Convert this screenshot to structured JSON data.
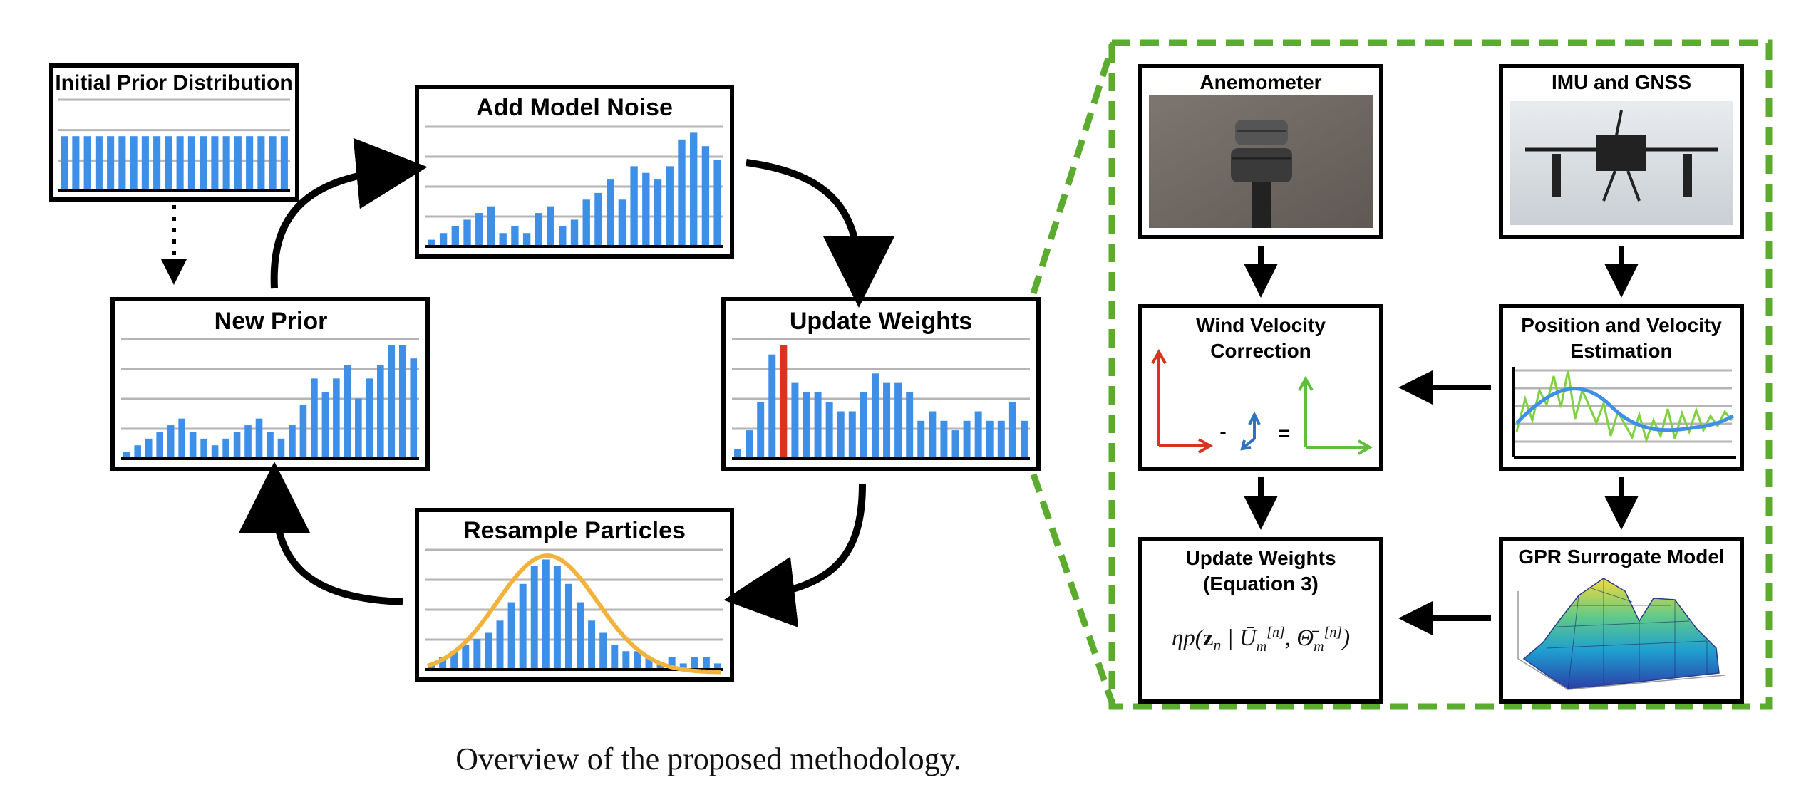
{
  "caption": "Overview of the proposed methodology.",
  "colors": {
    "bar": "#3d8fe8",
    "grid": "#b5b5b5",
    "highlight_bar": "#d8341f",
    "gaussian": "#f2b33d",
    "dashed_border": "#5aab2e",
    "arrow": "#000000",
    "vector_red": "#d8341f",
    "vector_blue": "#2f73c0",
    "vector_green": "#5fbf3a"
  },
  "left_cycle": {
    "initial_prior": {
      "title": "Initial Prior Distribution",
      "values": [
        9,
        9,
        9,
        9,
        9,
        9,
        9,
        9,
        9,
        9,
        9,
        9,
        9,
        9,
        9,
        9,
        9,
        9,
        9,
        9
      ]
    },
    "add_model_noise": {
      "title": "Add Model Noise",
      "values": [
        1,
        2,
        3,
        4,
        5,
        6,
        2,
        3,
        2,
        5,
        6,
        3,
        4,
        7,
        8,
        10,
        7,
        12,
        11,
        10,
        12,
        16,
        17,
        15,
        13
      ]
    },
    "update_weights": {
      "title": "Update Weights",
      "values": [
        1,
        3,
        6,
        11,
        12,
        8,
        7,
        7,
        6,
        5,
        5,
        7,
        9,
        8,
        8,
        7,
        4,
        5,
        4,
        3,
        4,
        5,
        4,
        4,
        6,
        4
      ],
      "highlight_index": 4
    },
    "resample_particles": {
      "title": "Resample Particles",
      "values": [
        1,
        2,
        3,
        4,
        5,
        6,
        8,
        11,
        14,
        17,
        18,
        17,
        14,
        11,
        8,
        6,
        4,
        3,
        3,
        2,
        1,
        2,
        1,
        2,
        2,
        1
      ]
    },
    "new_prior": {
      "title": "New Prior",
      "values": [
        1,
        2,
        3,
        4,
        5,
        6,
        4,
        3,
        2,
        3,
        4,
        5,
        6,
        4,
        3,
        5,
        8,
        12,
        10,
        12,
        14,
        9,
        12,
        14,
        17,
        17,
        15
      ]
    }
  },
  "right_panel": {
    "anemometer": {
      "title": "Anemometer"
    },
    "imu_gnss": {
      "title": "IMU and GNSS"
    },
    "wind_velocity": {
      "title_line1": "Wind Velocity",
      "title_line2": "Correction",
      "minus": "-",
      "equals": "="
    },
    "position_velocity": {
      "title_line1": "Position and Velocity",
      "title_line2": "Estimation"
    },
    "update_weights": {
      "title_line1": "Update Weights",
      "title_line2": "(Equation 3)"
    },
    "gpr_model": {
      "title": "GPR Surrogate Model"
    }
  }
}
